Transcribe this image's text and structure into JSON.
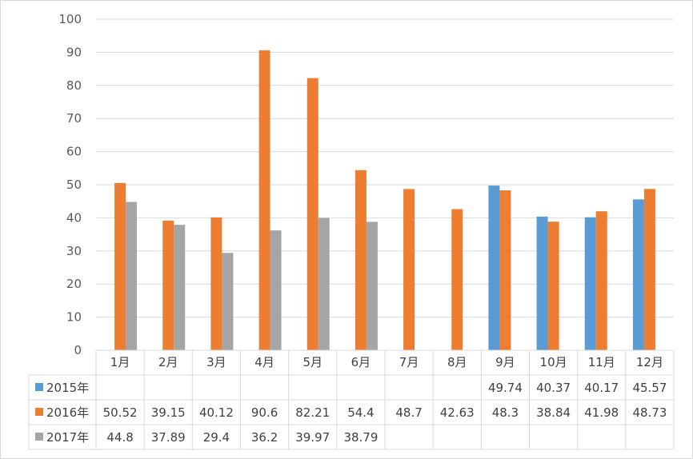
{
  "chart_data": {
    "type": "bar",
    "title": "",
    "xlabel": "",
    "ylabel": "",
    "ylim": [
      0,
      100
    ],
    "yticks": [
      0,
      10,
      20,
      30,
      40,
      50,
      60,
      70,
      80,
      90,
      100
    ],
    "gridlines": true,
    "legend": "data-table",
    "categories": [
      "1月",
      "2月",
      "3月",
      "4月",
      "5月",
      "6月",
      "7月",
      "8月",
      "9月",
      "10月",
      "11月",
      "12月"
    ],
    "series": [
      {
        "name": "2015年",
        "color": "#5b9bd5",
        "values": [
          null,
          null,
          null,
          null,
          null,
          null,
          null,
          null,
          49.74,
          40.37,
          40.17,
          45.57
        ],
        "labels": [
          "",
          "",
          "",
          "",
          "",
          "",
          "",
          "",
          "49.74",
          "40.37",
          "40.17",
          "45.57"
        ]
      },
      {
        "name": "2016年",
        "color": "#ed7d31",
        "values": [
          50.52,
          39.15,
          40.12,
          90.6,
          82.21,
          54.4,
          48.7,
          42.63,
          48.3,
          38.84,
          41.98,
          48.73
        ],
        "labels": [
          "50.52",
          "39.15",
          "40.12",
          "90.6",
          "82.21",
          "54.4",
          "48.7",
          "42.63",
          "48.3",
          "38.84",
          "41.98",
          "48.73"
        ]
      },
      {
        "name": "2017年",
        "color": "#a5a5a5",
        "values": [
          44.8,
          37.89,
          29.4,
          36.2,
          39.97,
          38.79,
          null,
          null,
          null,
          null,
          null,
          null
        ],
        "labels": [
          "44.8",
          "37.89",
          "29.4",
          "36.2",
          "39.97",
          "38.79",
          "",
          "",
          "",
          "",
          "",
          ""
        ]
      }
    ]
  }
}
